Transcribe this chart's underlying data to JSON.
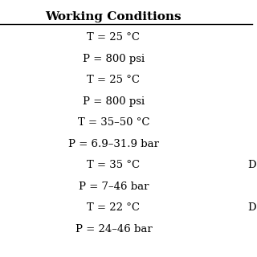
{
  "title": "Working Conditions",
  "rows": [
    "T = 25 °C",
    "P = 800 psi",
    "T = 25 °C",
    "P = 800 psi",
    "T = 35–50 °C",
    "P = 6.9–31.9 bar",
    "T = 35 °C",
    "P = 7–46 bar",
    "T = 22 °C",
    "P = 24–46 bar"
  ],
  "right_labels": [
    "",
    "",
    "",
    "",
    "",
    "",
    "D",
    "",
    "D",
    ""
  ],
  "bg_color": "#ffffff",
  "text_color": "#000000",
  "title_fontsize": 11,
  "row_fontsize": 9.5
}
